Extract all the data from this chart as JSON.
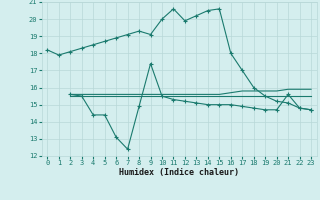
{
  "xlabel": "Humidex (Indice chaleur)",
  "x_values": [
    0,
    1,
    2,
    3,
    4,
    5,
    6,
    7,
    8,
    9,
    10,
    11,
    12,
    13,
    14,
    15,
    16,
    17,
    18,
    19,
    20,
    21,
    22,
    23
  ],
  "line1": [
    18.2,
    17.9,
    18.1,
    18.3,
    18.5,
    18.7,
    18.9,
    19.1,
    19.3,
    19.1,
    20.0,
    20.6,
    19.9,
    20.2,
    20.5,
    20.6,
    18.0,
    17.0,
    16.0,
    15.5,
    15.2,
    15.1,
    14.8,
    14.7
  ],
  "line2": [
    null,
    null,
    15.6,
    15.5,
    14.4,
    14.4,
    13.1,
    12.4,
    14.9,
    17.4,
    15.5,
    15.3,
    15.2,
    15.1,
    15.0,
    15.0,
    15.0,
    14.9,
    14.8,
    14.7,
    14.7,
    15.6,
    14.8,
    14.7
  ],
  "line3": [
    null,
    null,
    15.6,
    15.6,
    15.6,
    15.6,
    15.6,
    15.6,
    15.6,
    15.6,
    15.6,
    15.6,
    15.6,
    15.6,
    15.6,
    15.6,
    15.7,
    15.8,
    15.8,
    15.8,
    15.8,
    15.9,
    15.9,
    15.9
  ],
  "line4": [
    null,
    null,
    15.5,
    15.5,
    15.5,
    15.5,
    15.5,
    15.5,
    15.5,
    15.5,
    15.5,
    15.5,
    15.5,
    15.5,
    15.5,
    15.5,
    15.5,
    15.5,
    15.5,
    15.5,
    15.5,
    15.5,
    15.5,
    15.5
  ],
  "line_color": "#1a7a6e",
  "bg_color": "#d4eeee",
  "grid_color": "#b8d8d8",
  "ylim": [
    12,
    21
  ],
  "xlim": [
    -0.5,
    23.5
  ],
  "yticks": [
    12,
    13,
    14,
    15,
    16,
    17,
    18,
    19,
    20,
    21
  ],
  "xticks": [
    0,
    1,
    2,
    3,
    4,
    5,
    6,
    7,
    8,
    9,
    10,
    11,
    12,
    13,
    14,
    15,
    16,
    17,
    18,
    19,
    20,
    21,
    22,
    23
  ]
}
